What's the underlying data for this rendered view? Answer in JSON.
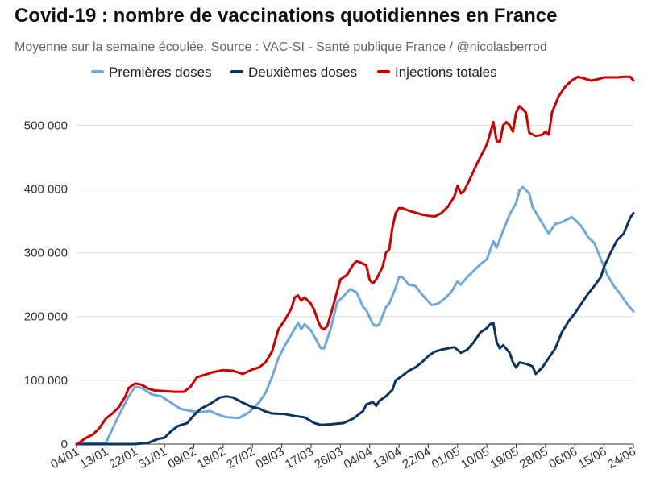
{
  "title": "Covid-19 : nombre de vaccinations quotidiennes en France",
  "subtitle": "Moyenne sur la semaine écoulée. Source : VAC-SI - Santé publique France / @nicolasberrod",
  "chart_data": {
    "type": "line",
    "title": "Covid-19 : nombre de vaccinations quotidiennes en France",
    "subtitle": "Moyenne sur la semaine écoulée. Source : VAC-SI - Santé publique France / @nicolasberrod",
    "xlabel": "",
    "ylabel": "",
    "x_ticks": [
      "04/01",
      "13/01",
      "22/01",
      "31/01",
      "09/02",
      "18/02",
      "27/02",
      "08/03",
      "17/03",
      "26/03",
      "04/04",
      "13/04",
      "22/04",
      "01/05",
      "10/05",
      "19/05",
      "28/05",
      "06/06",
      "15/06",
      "24/06"
    ],
    "y_ticks": [
      "0",
      "100 000",
      "200 000",
      "300 000",
      "400 000",
      "500 000"
    ],
    "ylim": [
      0,
      575000
    ],
    "grid": "horizontal",
    "legend": "top",
    "series": [
      {
        "name": "Premières doses",
        "color": "#6fa8dc",
        "points": [
          [
            "04/01",
            0
          ],
          [
            "13/01",
            2000
          ],
          [
            "17/01",
            45000
          ],
          [
            "20/01",
            75000
          ],
          [
            "22/01",
            90000
          ],
          [
            "24/01",
            88000
          ],
          [
            "27/01",
            78000
          ],
          [
            "30/01",
            75000
          ],
          [
            "02/02",
            65000
          ],
          [
            "05/02",
            55000
          ],
          [
            "08/02",
            52000
          ],
          [
            "11/02",
            50000
          ],
          [
            "14/02",
            52000
          ],
          [
            "16/02",
            47000
          ],
          [
            "19/02",
            42000
          ],
          [
            "23/02",
            41000
          ],
          [
            "26/02",
            50000
          ],
          [
            "01/03",
            65000
          ],
          [
            "03/03",
            80000
          ],
          [
            "05/03",
            105000
          ],
          [
            "07/03",
            135000
          ],
          [
            "09/03",
            155000
          ],
          [
            "11/03",
            172000
          ],
          [
            "13/03",
            190000
          ],
          [
            "14/03",
            180000
          ],
          [
            "15/03",
            188000
          ],
          [
            "17/03",
            178000
          ],
          [
            "19/03",
            160000
          ],
          [
            "20/03",
            150000
          ],
          [
            "21/03",
            150000
          ],
          [
            "23/03",
            180000
          ],
          [
            "25/03",
            222000
          ],
          [
            "27/03",
            232000
          ],
          [
            "29/03",
            243000
          ],
          [
            "31/03",
            238000
          ],
          [
            "02/04",
            215000
          ],
          [
            "03/04",
            210000
          ],
          [
            "05/04",
            188000
          ],
          [
            "06/04",
            185000
          ],
          [
            "07/04",
            188000
          ],
          [
            "09/04",
            215000
          ],
          [
            "10/04",
            220000
          ],
          [
            "12/04",
            245000
          ],
          [
            "13/04",
            262000
          ],
          [
            "14/04",
            262000
          ],
          [
            "16/04",
            250000
          ],
          [
            "18/04",
            248000
          ],
          [
            "20/04",
            235000
          ],
          [
            "23/04",
            218000
          ],
          [
            "25/04",
            220000
          ],
          [
            "27/04",
            228000
          ],
          [
            "29/04",
            238000
          ],
          [
            "01/05",
            255000
          ],
          [
            "02/05",
            250000
          ],
          [
            "04/05",
            262000
          ],
          [
            "06/05",
            272000
          ],
          [
            "08/05",
            282000
          ],
          [
            "10/05",
            290000
          ],
          [
            "12/05",
            318000
          ],
          [
            "13/05",
            308000
          ],
          [
            "15/05",
            335000
          ],
          [
            "17/05",
            360000
          ],
          [
            "19/05",
            378000
          ],
          [
            "20/05",
            398000
          ],
          [
            "21/05",
            403000
          ],
          [
            "23/05",
            393000
          ],
          [
            "24/05",
            372000
          ],
          [
            "26/05",
            355000
          ],
          [
            "28/05",
            338000
          ],
          [
            "29/05",
            330000
          ],
          [
            "31/05",
            345000
          ],
          [
            "02/06",
            348000
          ],
          [
            "04/06",
            353000
          ],
          [
            "05/06",
            356000
          ],
          [
            "06/06",
            352000
          ],
          [
            "08/06",
            342000
          ],
          [
            "10/06",
            325000
          ],
          [
            "12/06",
            315000
          ],
          [
            "14/06",
            290000
          ],
          [
            "16/06",
            265000
          ],
          [
            "18/06",
            248000
          ],
          [
            "20/06",
            235000
          ],
          [
            "22/06",
            220000
          ],
          [
            "24/06",
            208000
          ]
        ]
      },
      {
        "name": "Deuxièmes doses",
        "color": "#0b3560",
        "points": [
          [
            "04/01",
            0
          ],
          [
            "22/01",
            0
          ],
          [
            "26/01",
            2000
          ],
          [
            "29/01",
            8000
          ],
          [
            "31/01",
            10000
          ],
          [
            "02/02",
            20000
          ],
          [
            "04/02",
            28000
          ],
          [
            "07/02",
            33000
          ],
          [
            "09/02",
            45000
          ],
          [
            "11/02",
            55000
          ],
          [
            "14/02",
            63000
          ],
          [
            "17/02",
            73000
          ],
          [
            "19/02",
            75000
          ],
          [
            "21/02",
            73000
          ],
          [
            "24/02",
            65000
          ],
          [
            "27/02",
            58000
          ],
          [
            "01/03",
            56000
          ],
          [
            "03/03",
            51000
          ],
          [
            "05/03",
            48000
          ],
          [
            "09/03",
            47000
          ],
          [
            "12/03",
            44000
          ],
          [
            "15/03",
            42000
          ],
          [
            "18/03",
            33000
          ],
          [
            "20/03",
            30000
          ],
          [
            "23/03",
            31000
          ],
          [
            "27/03",
            33000
          ],
          [
            "30/03",
            40000
          ],
          [
            "02/04",
            52000
          ],
          [
            "03/04",
            62000
          ],
          [
            "05/04",
            66000
          ],
          [
            "06/04",
            60000
          ],
          [
            "07/04",
            68000
          ],
          [
            "09/04",
            75000
          ],
          [
            "11/04",
            85000
          ],
          [
            "12/04",
            100000
          ],
          [
            "14/04",
            107000
          ],
          [
            "16/04",
            115000
          ],
          [
            "18/04",
            120000
          ],
          [
            "20/04",
            128000
          ],
          [
            "22/04",
            138000
          ],
          [
            "24/04",
            145000
          ],
          [
            "26/04",
            148000
          ],
          [
            "28/04",
            150000
          ],
          [
            "30/04",
            152000
          ],
          [
            "02/05",
            143000
          ],
          [
            "04/05",
            148000
          ],
          [
            "06/05",
            160000
          ],
          [
            "08/05",
            175000
          ],
          [
            "10/05",
            182000
          ],
          [
            "11/05",
            188000
          ],
          [
            "12/05",
            190000
          ],
          [
            "13/05",
            160000
          ],
          [
            "14/05",
            150000
          ],
          [
            "15/05",
            155000
          ],
          [
            "17/05",
            143000
          ],
          [
            "18/05",
            128000
          ],
          [
            "19/05",
            120000
          ],
          [
            "20/05",
            128000
          ],
          [
            "22/05",
            126000
          ],
          [
            "24/05",
            122000
          ],
          [
            "25/05",
            110000
          ],
          [
            "27/05",
            120000
          ],
          [
            "29/05",
            135000
          ],
          [
            "31/05",
            150000
          ],
          [
            "02/06",
            175000
          ],
          [
            "04/06",
            192000
          ],
          [
            "06/06",
            205000
          ],
          [
            "08/06",
            220000
          ],
          [
            "10/06",
            235000
          ],
          [
            "12/06",
            248000
          ],
          [
            "14/06",
            262000
          ],
          [
            "15/06",
            278000
          ],
          [
            "17/06",
            300000
          ],
          [
            "19/06",
            320000
          ],
          [
            "21/06",
            330000
          ],
          [
            "23/06",
            355000
          ],
          [
            "24/06",
            362000
          ]
        ]
      },
      {
        "name": "Injections totales",
        "color": "#cc0000",
        "points": [
          [
            "04/01",
            0
          ],
          [
            "05/01",
            3000
          ],
          [
            "07/01",
            10000
          ],
          [
            "09/01",
            15000
          ],
          [
            "11/01",
            25000
          ],
          [
            "13/01",
            40000
          ],
          [
            "15/01",
            48000
          ],
          [
            "17/01",
            58000
          ],
          [
            "19/01",
            75000
          ],
          [
            "20/01",
            88000
          ],
          [
            "22/01",
            95000
          ],
          [
            "24/01",
            93000
          ],
          [
            "26/01",
            87000
          ],
          [
            "28/01",
            84000
          ],
          [
            "31/01",
            83000
          ],
          [
            "03/02",
            82000
          ],
          [
            "06/02",
            82000
          ],
          [
            "08/02",
            90000
          ],
          [
            "10/02",
            105000
          ],
          [
            "12/02",
            108000
          ],
          [
            "15/02",
            113000
          ],
          [
            "18/02",
            116000
          ],
          [
            "21/02",
            115000
          ],
          [
            "24/02",
            110000
          ],
          [
            "27/02",
            117000
          ],
          [
            "01/03",
            120000
          ],
          [
            "03/03",
            128000
          ],
          [
            "05/03",
            145000
          ],
          [
            "07/03",
            180000
          ],
          [
            "09/03",
            195000
          ],
          [
            "11/03",
            213000
          ],
          [
            "12/03",
            230000
          ],
          [
            "13/03",
            233000
          ],
          [
            "14/03",
            225000
          ],
          [
            "15/03",
            230000
          ],
          [
            "17/03",
            220000
          ],
          [
            "18/03",
            210000
          ],
          [
            "19/03",
            195000
          ],
          [
            "20/03",
            183000
          ],
          [
            "21/03",
            180000
          ],
          [
            "22/03",
            185000
          ],
          [
            "24/03",
            220000
          ],
          [
            "26/03",
            258000
          ],
          [
            "28/03",
            265000
          ],
          [
            "30/03",
            282000
          ],
          [
            "31/03",
            287000
          ],
          [
            "01/04",
            285000
          ],
          [
            "03/04",
            280000
          ],
          [
            "04/04",
            257000
          ],
          [
            "05/04",
            252000
          ],
          [
            "06/04",
            258000
          ],
          [
            "08/04",
            278000
          ],
          [
            "09/04",
            300000
          ],
          [
            "10/04",
            305000
          ],
          [
            "11/04",
            340000
          ],
          [
            "12/04",
            362000
          ],
          [
            "13/04",
            370000
          ],
          [
            "14/04",
            370000
          ],
          [
            "16/04",
            366000
          ],
          [
            "18/04",
            363000
          ],
          [
            "20/04",
            360000
          ],
          [
            "22/04",
            358000
          ],
          [
            "24/04",
            357000
          ],
          [
            "26/04",
            362000
          ],
          [
            "28/04",
            372000
          ],
          [
            "30/04",
            388000
          ],
          [
            "01/05",
            405000
          ],
          [
            "02/05",
            393000
          ],
          [
            "03/05",
            397000
          ],
          [
            "05/05",
            418000
          ],
          [
            "07/05",
            440000
          ],
          [
            "09/05",
            460000
          ],
          [
            "10/05",
            470000
          ],
          [
            "12/05",
            505000
          ],
          [
            "13/05",
            475000
          ],
          [
            "14/05",
            474000
          ],
          [
            "15/05",
            500000
          ],
          [
            "16/05",
            505000
          ],
          [
            "17/05",
            500000
          ],
          [
            "18/05",
            490000
          ],
          [
            "19/05",
            520000
          ],
          [
            "20/05",
            530000
          ],
          [
            "22/05",
            520000
          ],
          [
            "23/05",
            488000
          ],
          [
            "25/05",
            483000
          ],
          [
            "27/05",
            485000
          ],
          [
            "28/05",
            490000
          ],
          [
            "29/05",
            485000
          ],
          [
            "30/05",
            520000
          ],
          [
            "01/06",
            545000
          ],
          [
            "03/06",
            560000
          ],
          [
            "05/06",
            570000
          ],
          [
            "07/06",
            576000
          ],
          [
            "09/06",
            573000
          ],
          [
            "11/06",
            570000
          ],
          [
            "13/06",
            572000
          ],
          [
            "15/06",
            575000
          ],
          [
            "17/06",
            575000
          ],
          [
            "19/06",
            575000
          ],
          [
            "21/06",
            576000
          ],
          [
            "23/06",
            576000
          ],
          [
            "24/06",
            570000
          ]
        ]
      }
    ]
  }
}
